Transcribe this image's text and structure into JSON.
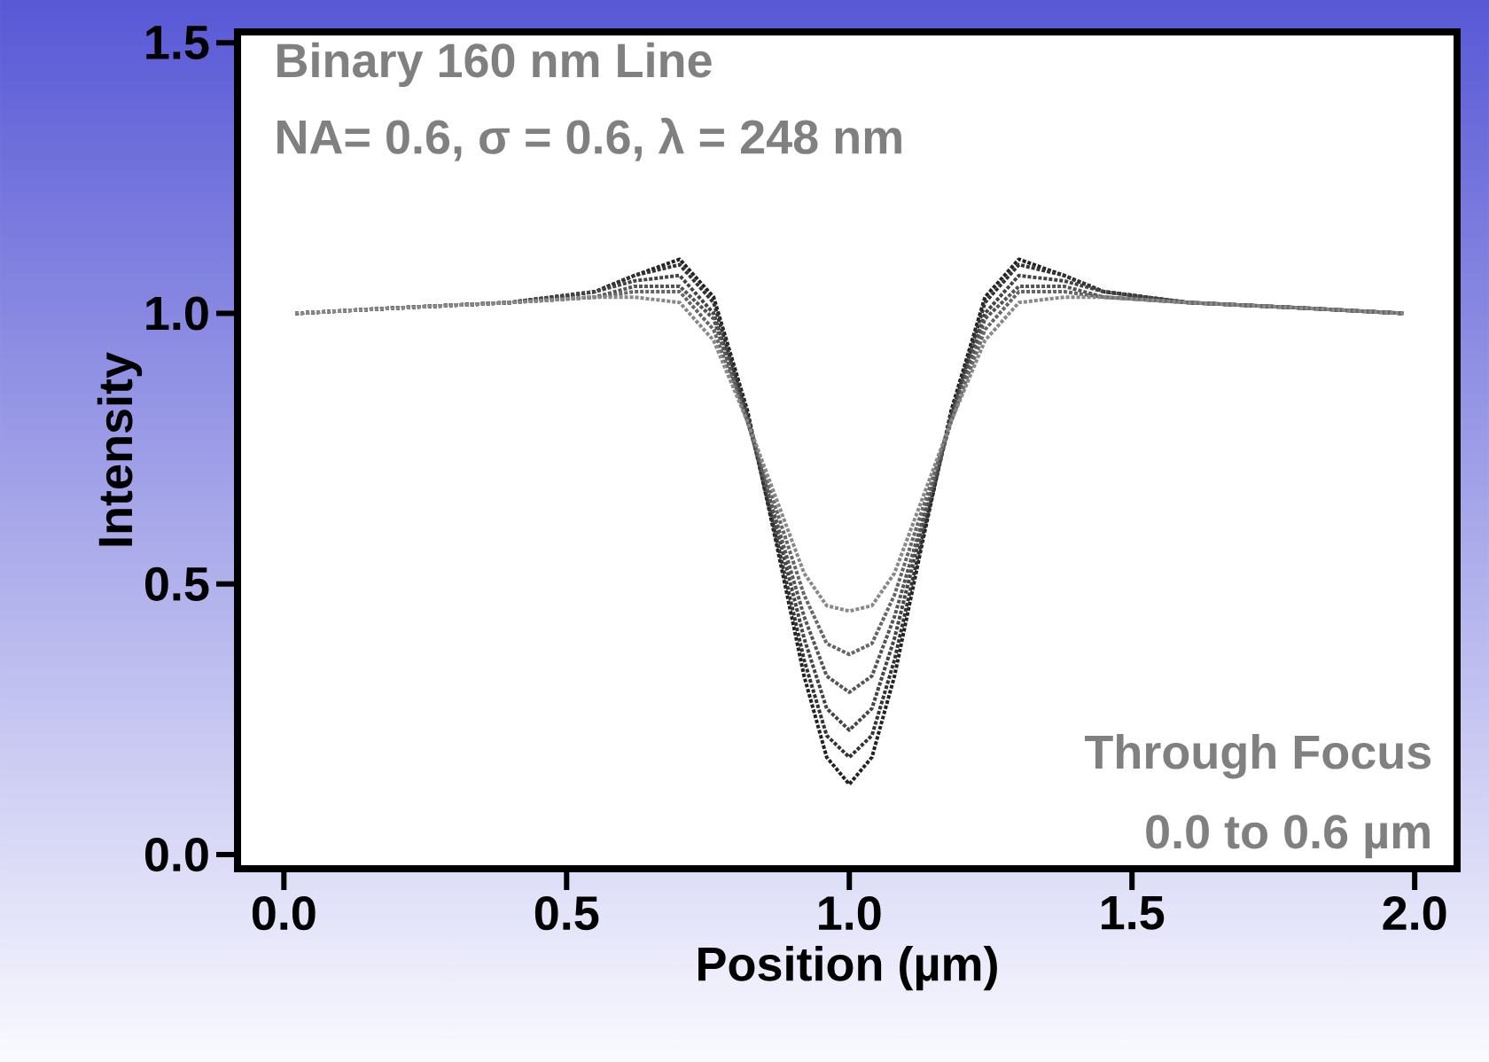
{
  "chart_data": {
    "type": "line",
    "xlabel": "Position (µm)",
    "ylabel": "Intensity",
    "annotations": [
      "**Binary 160 nm Line**",
      "**NA= 0.6,  σ = 0.6,  λ = 248 nm**",
      "**Through Focus**",
      "**0.0 to 0.6 µm**"
    ],
    "x": [
      0.02,
      0.2,
      0.4,
      0.55,
      0.62,
      0.7,
      0.76,
      0.82,
      0.87,
      0.92,
      0.96,
      1.0,
      1.04,
      1.08,
      1.13,
      1.18,
      1.24,
      1.3,
      1.38,
      1.45,
      1.6,
      1.8,
      1.98
    ],
    "series": [
      {
        "color": "#222222",
        "values": [
          1.0,
          1.01,
          1.02,
          1.04,
          1.07,
          1.1,
          1.03,
          0.82,
          0.58,
          0.33,
          0.18,
          0.13,
          0.18,
          0.33,
          0.58,
          0.82,
          1.03,
          1.1,
          1.07,
          1.04,
          1.02,
          1.01,
          1.0
        ]
      },
      {
        "color": "#333333",
        "values": [
          1.0,
          1.01,
          1.02,
          1.04,
          1.07,
          1.09,
          1.02,
          0.81,
          0.59,
          0.36,
          0.22,
          0.18,
          0.22,
          0.36,
          0.59,
          0.81,
          1.02,
          1.09,
          1.07,
          1.04,
          1.02,
          1.01,
          1.0
        ]
      },
      {
        "color": "#444444",
        "values": [
          1.0,
          1.01,
          1.02,
          1.04,
          1.06,
          1.07,
          1.0,
          0.81,
          0.61,
          0.4,
          0.27,
          0.23,
          0.27,
          0.4,
          0.61,
          0.81,
          1.0,
          1.07,
          1.06,
          1.04,
          1.02,
          1.01,
          1.0
        ]
      },
      {
        "color": "#555555",
        "values": [
          1.0,
          1.01,
          1.02,
          1.03,
          1.05,
          1.05,
          0.99,
          0.8,
          0.62,
          0.44,
          0.33,
          0.3,
          0.33,
          0.44,
          0.62,
          0.8,
          0.99,
          1.05,
          1.05,
          1.03,
          1.02,
          1.01,
          1.0
        ]
      },
      {
        "color": "#666666",
        "values": [
          1.0,
          1.01,
          1.02,
          1.03,
          1.04,
          1.04,
          0.97,
          0.8,
          0.64,
          0.48,
          0.39,
          0.37,
          0.39,
          0.48,
          0.64,
          0.8,
          0.97,
          1.04,
          1.04,
          1.03,
          1.02,
          1.01,
          1.0
        ]
      },
      {
        "color": "#888888",
        "values": [
          1.0,
          1.01,
          1.02,
          1.03,
          1.03,
          1.02,
          0.95,
          0.8,
          0.66,
          0.52,
          0.46,
          0.45,
          0.46,
          0.52,
          0.66,
          0.8,
          0.95,
          1.02,
          1.03,
          1.03,
          1.02,
          1.01,
          1.0
        ]
      }
    ],
    "xlim": [
      -0.082,
      2.075
    ],
    "ylim": [
      -0.026,
      1.52
    ],
    "xticks": [
      {
        "value": 0,
        "label": "0.0"
      },
      {
        "value": 0.5,
        "label": "0.5"
      },
      {
        "value": 1,
        "label": "1.0"
      },
      {
        "value": 1.5,
        "label": "1.5"
      },
      {
        "value": 2,
        "label": "2.0"
      }
    ],
    "yticks": [
      {
        "value": 0,
        "label": "0.0"
      },
      {
        "value": 0.5,
        "label": "0.5"
      },
      {
        "value": 1,
        "label": "1.0"
      },
      {
        "value": 1.5,
        "label": "1.5"
      }
    ],
    "grid": false,
    "marker": "none",
    "line_style": "dotted"
  }
}
